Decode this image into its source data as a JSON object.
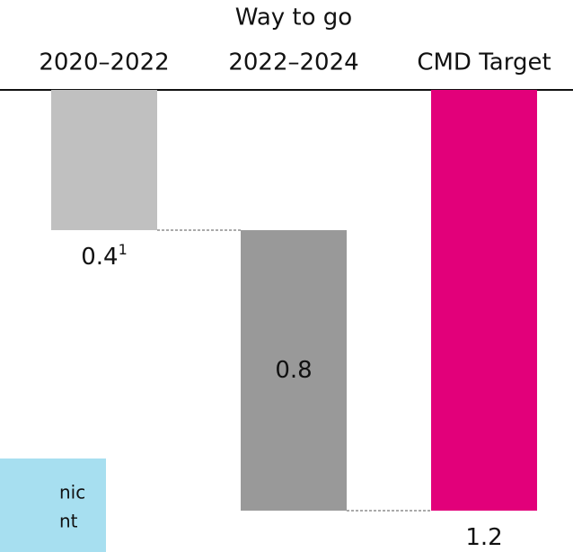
{
  "chart_data": {
    "type": "waterfall",
    "header": "Way to go",
    "categories": [
      "2020–2022",
      "2022–2024",
      "CMD Target"
    ],
    "values": [
      0.4,
      0.8,
      1.2
    ],
    "is_total": [
      false,
      false,
      true
    ],
    "colors": [
      "#c0c0c0",
      "#999999",
      "#e2007a"
    ],
    "label_footnote": "1",
    "ylim": [
      0,
      1.2
    ]
  },
  "note_box": {
    "lines": [
      "nic",
      "nt"
    ]
  }
}
